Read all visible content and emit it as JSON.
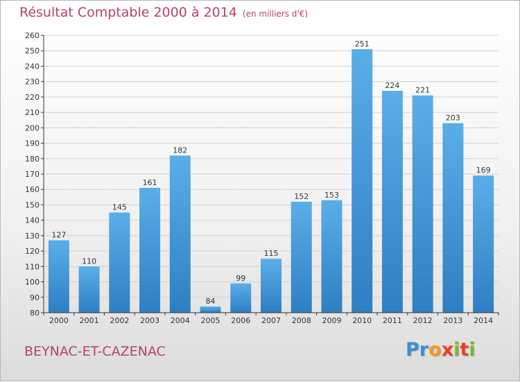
{
  "chart_data": {
    "type": "bar",
    "title": "Résultat Comptable 2000 à 2014",
    "subtitle": "(en milliers d'€)",
    "categories": [
      "2000",
      "2001",
      "2002",
      "2003",
      "2004",
      "2005",
      "2006",
      "2007",
      "2008",
      "2009",
      "2010",
      "2011",
      "2012",
      "2013",
      "2014"
    ],
    "values": [
      127,
      110,
      145,
      161,
      182,
      84,
      99,
      115,
      152,
      153,
      251,
      224,
      221,
      203,
      169
    ],
    "ylim": [
      80,
      260
    ],
    "ytick_step": 10,
    "xlabel": "",
    "ylabel": "",
    "grid": true,
    "colors": {
      "bar_light": "#5aaee8",
      "bar_dark": "#2e7fc2",
      "grid": "#d2d2d2",
      "axis": "#333333"
    }
  },
  "footer": {
    "commune": "BEYNAC-ET-CAZENAC",
    "logo_letters": [
      "P",
      "r",
      "o",
      "x",
      "i",
      "t",
      "i"
    ],
    "logo_colors": [
      "#3a8fd6",
      "#3a8fd6",
      "#f29a1f",
      "#e8412b",
      "#7ab829",
      "#e8412b",
      "#7ab829"
    ]
  }
}
